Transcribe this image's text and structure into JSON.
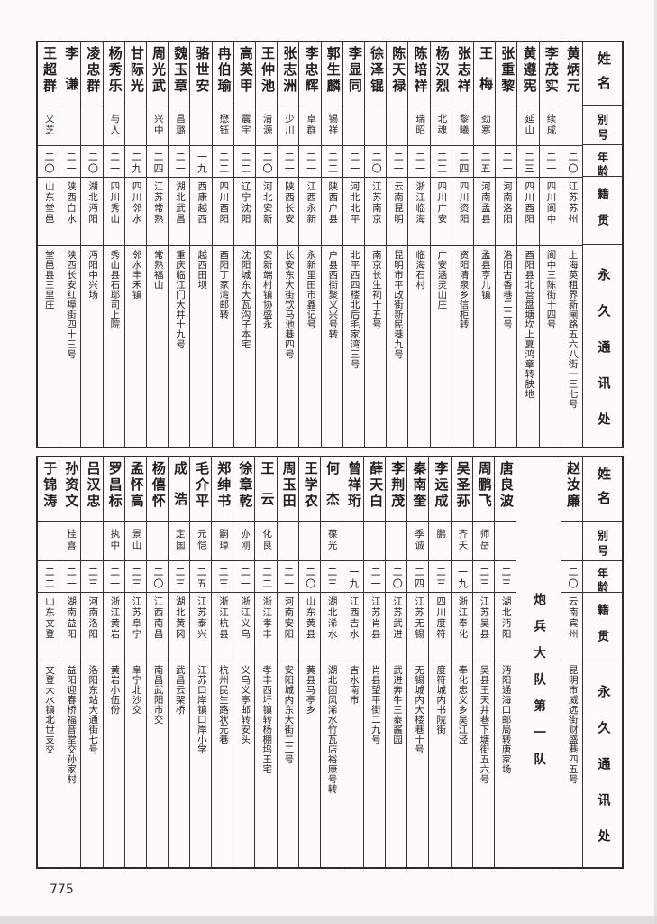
{
  "page": {
    "number": "775"
  },
  "headers": [
    "姓名",
    "别号",
    "年龄",
    "籍贯",
    "永久通讯处"
  ],
  "unit_label": "炮兵大队第一队",
  "tables": [
    {
      "id": "top",
      "entries": [
        {
          "name": "黄炳元",
          "alias": "",
          "age": "二〇",
          "native": "江苏苏州",
          "address": "上海英租界新闸路五六八街一三七号"
        },
        {
          "name": "李茂实",
          "alias": "续成",
          "age": "二一",
          "native": "四川阆中",
          "address": "阆中三陈街十四号"
        },
        {
          "name": "黄遵宪",
          "alias": "延山",
          "age": "二三",
          "native": "四川酉阳",
          "address": "酉阳县北营盘塘坎上夏鸿章转胦地"
        },
        {
          "name": "张重黎",
          "alias": "",
          "age": "二一",
          "native": "河南洛阳",
          "address": "洛阳古香巷二二号"
        },
        {
          "name": "王梅",
          "alias": "劲寒",
          "age": "二五",
          "native": "河南孟县",
          "address": "孟县亨儿镇"
        },
        {
          "name": "张志祥",
          "alias": "黎曦",
          "age": "二四",
          "native": "四川资阳",
          "address": "资阳清泉乡信柜转"
        },
        {
          "name": "杨汉烈",
          "alias": "北魂",
          "age": "二二",
          "native": "四川广安",
          "address": "广安涵灵山庄"
        },
        {
          "name": "陈培祥",
          "alias": "瑞昭",
          "age": "二一",
          "native": "浙江临海",
          "address": "临海石村"
        },
        {
          "name": "陈天禄",
          "alias": "",
          "age": "二一",
          "native": "云南昆明",
          "address": "昆明市平政街新民巷九号"
        },
        {
          "name": "徐泽锟",
          "alias": "",
          "age": "二〇",
          "native": "江苏南京",
          "address": "南京长生祠十五号"
        },
        {
          "name": "李显同",
          "alias": "",
          "age": "二一",
          "native": "河北北平",
          "address": "北平西四楼北后毛家湾三号"
        },
        {
          "name": "郭生麟",
          "alias": "锡祥",
          "age": "二二",
          "native": "陕西户县",
          "address": "户县西街聚义兴号转"
        },
        {
          "name": "李忠辉",
          "alias": "卓群",
          "age": "二一",
          "native": "江西永新",
          "address": "永新里田市鑫记号"
        },
        {
          "name": "张志洲",
          "alias": "少川",
          "age": "二一",
          "native": "陕西长安",
          "address": "长安东大街饮马池巷四号"
        },
        {
          "name": "王仲池",
          "alias": "清源",
          "age": "二〇",
          "native": "河北安新",
          "address": "安新端村镇协盛永"
        },
        {
          "name": "高英甲",
          "alias": "震宇",
          "age": "二二",
          "native": "辽宁沈阳",
          "address": "沈阳城东大瓦沟子本宅"
        },
        {
          "name": "冉伯瑜",
          "alias": "懋钰",
          "age": "二二",
          "native": "四川酉阳",
          "address": "酉阳丁家湾邮转"
        },
        {
          "name": "骆世安",
          "alias": "",
          "age": "一九",
          "native": "西康越西",
          "address": "越西田坝"
        },
        {
          "name": "魏玉章",
          "alias": "昌璐",
          "age": "二一",
          "native": "湖北武昌",
          "address": "重庆临江门大井十九号"
        },
        {
          "name": "周光武",
          "alias": "兴中",
          "age": "二四",
          "native": "江苏常熟",
          "address": "常熟福山"
        },
        {
          "name": "甘际光",
          "alias": "",
          "age": "二九",
          "native": "四川邻水",
          "address": "邻水丰禾镇"
        },
        {
          "name": "杨秀乐",
          "alias": "与人",
          "age": "二一",
          "native": "四川秀山",
          "address": "秀山县石耶司上院"
        },
        {
          "name": "凌忠群",
          "alias": "",
          "age": "二〇",
          "native": "湖北沔阳",
          "address": "沔阳中兴场"
        },
        {
          "name": "李谦",
          "alias": "",
          "age": "二一",
          "native": "陕西白水",
          "address": "陕西长安红埠街四十三号"
        },
        {
          "name": "王超群",
          "alias": "义芝",
          "age": "二〇",
          "native": "山东堂邑",
          "address": "堂邑县三里庄"
        }
      ]
    },
    {
      "id": "bottom",
      "entries": [
        {
          "name": "赵汝廉",
          "alias": "",
          "age": "二〇",
          "native": "云南宾州",
          "address": "昆明市威远街财盛巷四五号"
        },
        {
          "type": "separator",
          "label": "炮兵大队第一队"
        },
        {
          "name": "唐良波",
          "alias": "",
          "age": "二三",
          "native": "湖北沔阳",
          "address": "沔阳通海口邮局转唐家场"
        },
        {
          "name": "周鹏飞",
          "alias": "师岳",
          "age": "二三",
          "native": "江苏吴县",
          "address": "吴县王天井巷下塘街五六号"
        },
        {
          "name": "吴圣荪",
          "alias": "齐天",
          "age": "一九",
          "native": "浙江奉化",
          "address": "奉化忠义乡吴江泾"
        },
        {
          "name": "李远成",
          "alias": "鹏",
          "age": "二三",
          "native": "四川度符",
          "address": "度符城内书院街"
        },
        {
          "name": "秦南奎",
          "alias": "季诚",
          "age": "二四",
          "native": "江苏无锡",
          "address": "无锡城内大楼巷十号"
        },
        {
          "name": "李荆茂",
          "alias": "",
          "age": "二〇",
          "native": "江苏武进",
          "address": "武进奔牛三泰酱园"
        },
        {
          "name": "薛天白",
          "alias": "",
          "age": "二一",
          "native": "江苏肖县",
          "address": "肖县望平街二九号"
        },
        {
          "name": "曾祥珩",
          "alias": "",
          "age": "一九",
          "native": "江西吉水",
          "address": "吉水南市"
        },
        {
          "name": "何杰",
          "alias": "葆光",
          "age": "二三",
          "native": "湖北浠水",
          "address": "湖北团风浠水竹瓦店裕康号转"
        },
        {
          "name": "王学农",
          "alias": "",
          "age": "二〇",
          "native": "山东黄县",
          "address": "黄县马亭乡"
        },
        {
          "name": "周玉田",
          "alias": "",
          "age": "二一",
          "native": "河南安阳",
          "address": "安阳城内东大街二二号"
        },
        {
          "name": "王云",
          "alias": "化良",
          "age": "二二",
          "native": "浙江孝丰",
          "address": "孝丰西圩镇转杨棚坞王宅"
        },
        {
          "name": "徐章乾",
          "alias": "亦刚",
          "age": "二一",
          "native": "浙江义乌",
          "address": "义乌义亭邮转安头"
        },
        {
          "name": "郑绅书",
          "alias": "嗣璋",
          "age": "二三",
          "native": "浙江杭县",
          "address": "杭州民生路状元巷"
        },
        {
          "name": "毛介平",
          "alias": "元恺",
          "age": "二五",
          "native": "江苏泰兴",
          "address": "江苏口岸镇口岸小学"
        },
        {
          "name": "成浩",
          "alias": "定国",
          "age": "二三",
          "native": "湖北黄冈",
          "address": "武昌云架桥"
        },
        {
          "name": "杨僖怀",
          "alias": "",
          "age": "二〇",
          "native": "江西南昌",
          "address": "南昌武阳市交"
        },
        {
          "name": "孟怀高",
          "alias": "景山",
          "age": "二三",
          "native": "江苏阜宁",
          "address": "阜宁北沙交"
        },
        {
          "name": "罗昌标",
          "alias": "执中",
          "age": "二一",
          "native": "浙江黄岩",
          "address": "黄岩小伍份"
        },
        {
          "name": "吕汉忠",
          "alias": "",
          "age": "二三",
          "native": "河南洛阳",
          "address": "洛阳东站大通街七号"
        },
        {
          "name": "孙资文",
          "alias": "桂喜",
          "age": "二一",
          "native": "湖南益阳",
          "address": "益阳迎春桥福音堂交孙家村"
        },
        {
          "name": "于锦涛",
          "alias": "",
          "age": "二二",
          "native": "山东文登",
          "address": "文登大水镇北世支交"
        }
      ]
    }
  ]
}
